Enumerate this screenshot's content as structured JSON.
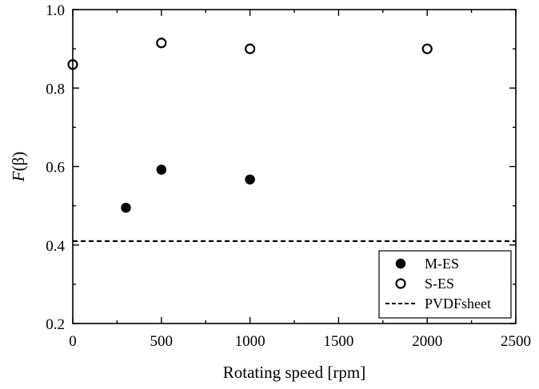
{
  "chart_data": {
    "type": "scatter",
    "xlabel": "Rotating speed [rpm]",
    "ylabel_italic": "F",
    "ylabel_rest": "(β)",
    "xlim": [
      0,
      2500
    ],
    "ylim": [
      0.2,
      1.0
    ],
    "x_ticks": [
      0,
      500,
      1000,
      1500,
      2000,
      2500
    ],
    "y_ticks": [
      0.2,
      0.4,
      0.6,
      0.8,
      1.0
    ],
    "x_tick_labels": [
      "0",
      "500",
      "1000",
      "1500",
      "2000",
      "2500"
    ],
    "y_tick_labels": [
      "0.2",
      "0.4",
      "0.6",
      "0.8",
      "1.0"
    ],
    "series": [
      {
        "name": "M-ES",
        "marker": "filled-circle",
        "x": [
          300,
          500,
          1000
        ],
        "y": [
          0.495,
          0.592,
          0.567
        ]
      },
      {
        "name": "S-ES",
        "marker": "open-circle",
        "x": [
          0,
          500,
          1000,
          2000
        ],
        "y": [
          0.86,
          0.915,
          0.9,
          0.9
        ]
      }
    ],
    "reference_lines": [
      {
        "name": "PVDFsheet",
        "style": "dashed",
        "y": 0.41
      }
    ],
    "legend_position": "bottom-right",
    "grid": false
  }
}
